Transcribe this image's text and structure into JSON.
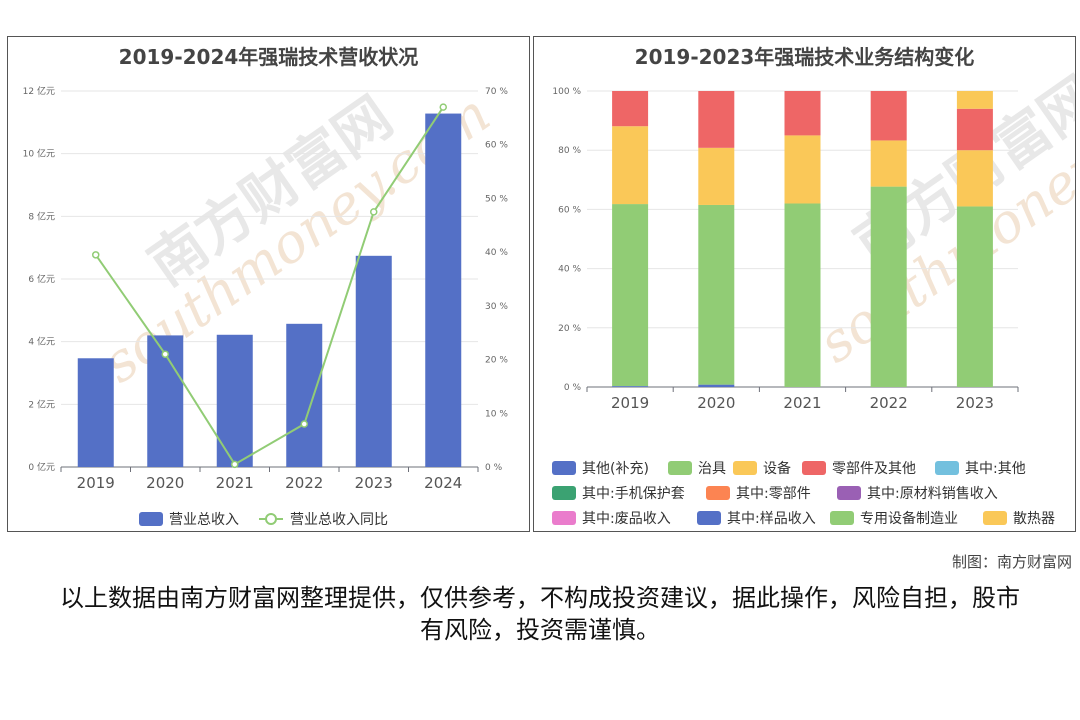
{
  "watermark": {
    "brand": "南方财富网",
    "site": "southmoney.com"
  },
  "credit": "制图：南方财富网",
  "disclaimer": "以上数据由南方财富网整理提供，仅供参考，不构成投资建议，据此操作，风险自担，股市有风险，投资需谨慎。",
  "chart_data": [
    {
      "type": "bar",
      "title": "2019-2024年强瑞技术营收状况",
      "categories": [
        "2019",
        "2020",
        "2021",
        "2022",
        "2023",
        "2024"
      ],
      "series": [
        {
          "name": "营业总收入",
          "type": "bar",
          "axis": "left",
          "color": "#5470c6",
          "values": [
            3.47,
            4.2,
            4.22,
            4.57,
            6.74,
            11.28
          ]
        },
        {
          "name": "营业总收入同比",
          "type": "line",
          "axis": "right",
          "color": "#91cc75",
          "values": [
            39.5,
            21.0,
            0.5,
            8.0,
            47.5,
            67.0
          ]
        }
      ],
      "y_left": {
        "min": 0,
        "max": 12,
        "ticks": [
          "0 亿元",
          "2 亿元",
          "4 亿元",
          "6 亿元",
          "8 亿元",
          "10 亿元",
          "12 亿元"
        ]
      },
      "y_right": {
        "min": 0,
        "max": 70,
        "ticks": [
          "0 %",
          "10 %",
          "20 %",
          "30 %",
          "40 %",
          "50 %",
          "60 %",
          "70 %"
        ]
      },
      "grid": true,
      "legend_position": "bottom"
    },
    {
      "type": "bar",
      "stacked": true,
      "title": "2019-2023年强瑞技术业务结构变化",
      "categories": [
        "2019",
        "2020",
        "2021",
        "2022",
        "2023"
      ],
      "y_axis": {
        "min": 0,
        "max": 100,
        "ticks": [
          "0 %",
          "20 %",
          "40 %",
          "60 %",
          "80 %",
          "100 %"
        ]
      },
      "series": [
        {
          "name": "其他(补充)",
          "color": "#5470c6",
          "values": [
            0.3,
            0.8,
            0,
            0,
            0
          ]
        },
        {
          "name": "治具",
          "color": "#91cc75",
          "values": [
            61.5,
            60.7,
            62.0,
            67.7,
            61.0
          ]
        },
        {
          "name": "设备",
          "color": "#fac858",
          "values": [
            26.3,
            19.3,
            23.0,
            15.6,
            19.0
          ]
        },
        {
          "name": "零部件及其他",
          "color": "#ee6666",
          "values": [
            11.9,
            19.2,
            15.0,
            16.7,
            14.0
          ]
        },
        {
          "name": "其中:其他",
          "color": "#73c0de",
          "values": [
            0,
            0,
            0,
            0,
            0
          ]
        },
        {
          "name": "其中:手机保护套",
          "color": "#3ba272",
          "values": [
            0,
            0,
            0,
            0,
            0
          ]
        },
        {
          "name": "其中:零部件",
          "color": "#fc8452",
          "values": [
            0,
            0,
            0,
            0,
            0
          ]
        },
        {
          "name": "其中:原材料销售收入",
          "color": "#9a60b4",
          "values": [
            0,
            0,
            0,
            0,
            0
          ]
        },
        {
          "name": "其中:废品收入",
          "color": "#ea7ccc",
          "values": [
            0,
            0,
            0,
            0,
            0
          ]
        },
        {
          "name": "其中:样品收入",
          "color": "#5470c6",
          "values": [
            0,
            0,
            0,
            0,
            0
          ]
        },
        {
          "name": "专用设备制造业",
          "color": "#91cc75",
          "values": [
            0,
            0,
            0,
            0,
            0
          ]
        },
        {
          "name": "散热器",
          "color": "#fac858",
          "values": [
            0,
            0,
            0,
            0,
            6.0
          ]
        }
      ],
      "grid": true,
      "legend_position": "bottom"
    }
  ]
}
